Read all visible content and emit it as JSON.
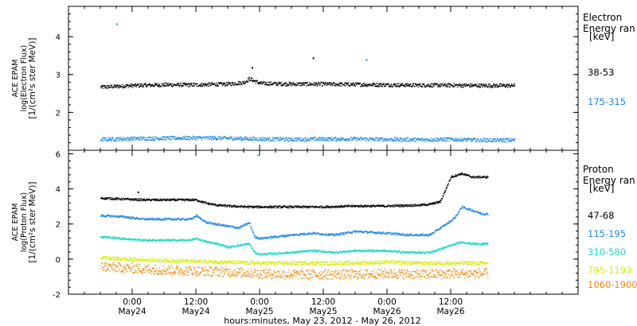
{
  "chart_data": [
    {
      "type": "scatter",
      "panel": "electron",
      "ylabel": [
        "ACE EPAM",
        "log(Electron Flux)",
        "[1/(cm²s ster MeV)]"
      ],
      "ylim": [
        1.0,
        4.8
      ],
      "yticks": [
        2,
        3,
        4
      ],
      "legend_title": [
        "Electron",
        "Energy ran",
        "[keV]"
      ],
      "series": [
        {
          "name": "38-53",
          "color": "#000000",
          "x": [
            0,
            6,
            12,
            18,
            24,
            27,
            28,
            30,
            36,
            42,
            48,
            54,
            60,
            66,
            72,
            78
          ],
          "y": [
            2.68,
            2.72,
            2.74,
            2.74,
            2.76,
            2.8,
            2.9,
            2.78,
            2.76,
            2.76,
            2.75,
            2.74,
            2.73,
            2.73,
            2.72,
            2.72
          ]
        },
        {
          "name": "175-315",
          "color": "#1e88e5",
          "x": [
            0,
            6,
            12,
            18,
            24,
            30,
            36,
            42,
            48,
            54,
            60,
            66,
            72,
            78
          ],
          "y": [
            1.3,
            1.32,
            1.33,
            1.34,
            1.33,
            1.31,
            1.3,
            1.31,
            1.31,
            1.3,
            1.29,
            1.3,
            1.28,
            1.28
          ]
        }
      ],
      "outliers": [
        {
          "x": 3,
          "y": 4.35,
          "color": "#1e88e5"
        },
        {
          "x": 28.5,
          "y": 3.2,
          "color": "#000000"
        },
        {
          "x": 40,
          "y": 3.45,
          "color": "#000000"
        },
        {
          "x": 50,
          "y": 3.4,
          "color": "#1e88e5"
        }
      ]
    },
    {
      "type": "scatter",
      "panel": "proton",
      "ylabel": [
        "ACE EPAM",
        "log(Proton Flux)",
        "[1/(cm²s ster MeV)]"
      ],
      "ylim": [
        -2.0,
        6.2
      ],
      "yticks": [
        -2,
        0,
        2,
        4,
        6
      ],
      "legend_title": [
        "Proton",
        "Energy ran",
        "[keV]"
      ],
      "series": [
        {
          "name": "47-68",
          "color": "#000000",
          "x": [
            0,
            4,
            8,
            14,
            18,
            20,
            22,
            24,
            28,
            30,
            36,
            42,
            48,
            54,
            60,
            62,
            64,
            65,
            66,
            68,
            70,
            73
          ],
          "y": [
            3.5,
            3.45,
            3.4,
            3.4,
            3.4,
            3.2,
            3.1,
            3.05,
            3.0,
            3.0,
            3.0,
            3.0,
            3.05,
            3.05,
            3.1,
            3.15,
            3.3,
            4.0,
            4.7,
            4.9,
            4.7,
            4.7
          ]
        },
        {
          "name": "115-195",
          "color": "#1e88e5",
          "x": [
            0,
            4,
            8,
            14,
            17,
            18,
            20,
            22,
            24,
            26,
            28,
            29,
            30,
            36,
            40,
            44,
            48,
            54,
            58,
            62,
            64,
            66,
            67,
            68,
            70,
            72,
            73
          ],
          "y": [
            2.5,
            2.45,
            2.3,
            2.3,
            2.3,
            2.5,
            2.1,
            2.0,
            1.9,
            1.8,
            2.1,
            1.3,
            1.2,
            1.4,
            1.5,
            1.4,
            1.6,
            1.5,
            1.4,
            1.4,
            1.8,
            2.2,
            2.5,
            3.0,
            2.8,
            2.6,
            2.6
          ]
        },
        {
          "name": "310-580",
          "color": "#1dd6c6",
          "x": [
            0,
            4,
            8,
            14,
            17,
            18,
            20,
            22,
            24,
            28,
            29,
            30,
            36,
            40,
            44,
            48,
            54,
            58,
            62,
            64,
            66,
            68,
            70,
            73
          ],
          "y": [
            1.3,
            1.2,
            1.1,
            1.1,
            1.1,
            1.2,
            1.0,
            0.9,
            0.7,
            0.9,
            0.4,
            0.3,
            0.4,
            0.5,
            0.4,
            0.5,
            0.5,
            0.4,
            0.4,
            0.6,
            0.8,
            1.0,
            0.9,
            0.9
          ]
        },
        {
          "name": "795-1193",
          "color": "#d4ee00",
          "x": [
            0,
            6,
            12,
            18,
            24,
            30,
            36,
            42,
            48,
            54,
            60,
            66,
            73
          ],
          "y": [
            0.1,
            0.0,
            -0.05,
            -0.1,
            -0.15,
            -0.2,
            -0.2,
            -0.2,
            -0.2,
            -0.15,
            -0.2,
            -0.2,
            -0.2
          ]
        },
        {
          "name": "1060-1900",
          "color": "#f0880a",
          "x": [
            0,
            6,
            12,
            18,
            24,
            30,
            36,
            42,
            48,
            54,
            60,
            66,
            73
          ],
          "y": [
            -0.4,
            -0.5,
            -0.6,
            -0.65,
            -0.7,
            -0.8,
            -0.85,
            -0.85,
            -0.85,
            -0.8,
            -0.85,
            -0.8,
            -0.8
          ]
        }
      ],
      "outliers": [
        {
          "x": 29.5,
          "y": 5.95,
          "color": "#1dd6c6"
        },
        {
          "x": 7,
          "y": 3.85,
          "color": "#000000"
        }
      ]
    }
  ],
  "x_axis": {
    "range_hours": [
      -6,
      90
    ],
    "major_ticks": [
      {
        "h": 6,
        "time": "0:00",
        "date": "May24"
      },
      {
        "h": 18,
        "time": "12:00",
        "date": "May24"
      },
      {
        "h": 30,
        "time": "0:00",
        "date": "May25"
      },
      {
        "h": 42,
        "time": "12:00",
        "date": "May25"
      },
      {
        "h": 54,
        "time": "0:00",
        "date": "May26"
      },
      {
        "h": 66,
        "time": "12:00",
        "date": "May26"
      }
    ],
    "xlabel": "hours:minutes, May 23, 2012 - May 26, 2012"
  }
}
